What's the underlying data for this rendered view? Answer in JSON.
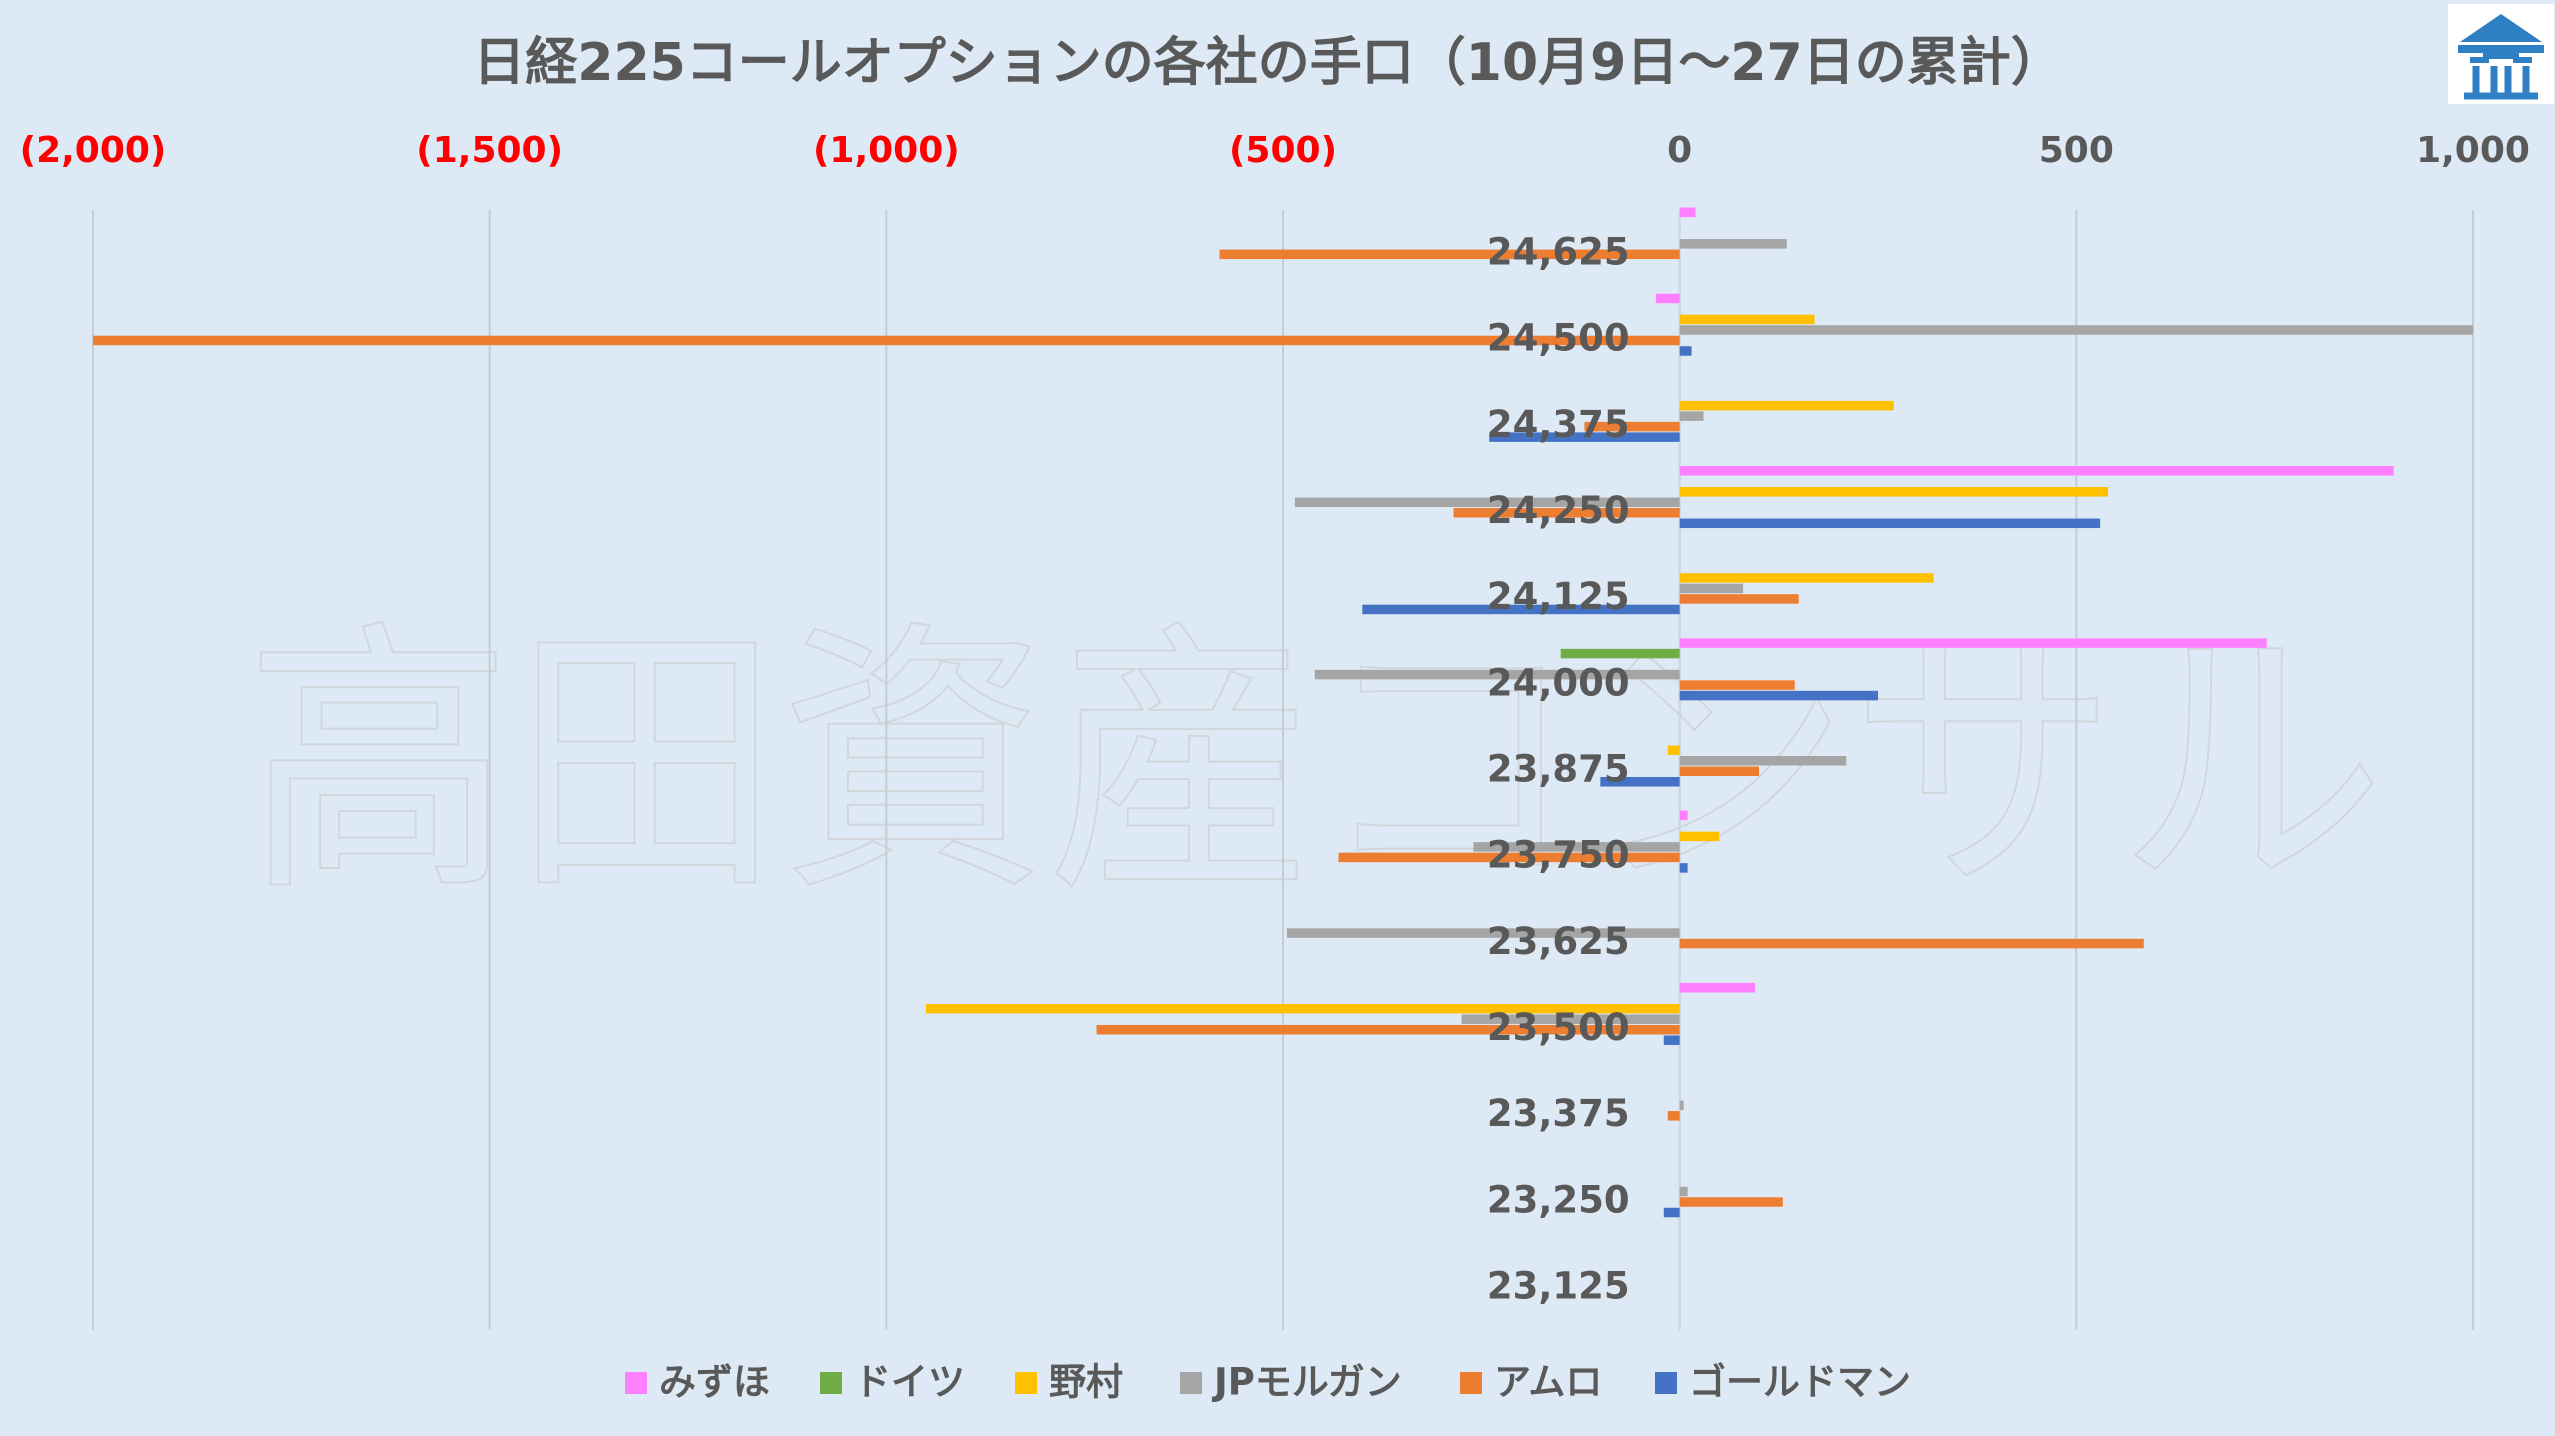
{
  "chart_data": {
    "type": "bar",
    "orientation": "horizontal",
    "title": "日経225コールオプションの各社の手口（10月9日～27日の累計）",
    "xlim": [
      -2000,
      1000
    ],
    "x_ticks": [
      -2000,
      -1500,
      -1000,
      -500,
      0,
      500,
      1000
    ],
    "x_tick_labels": [
      "(2,000)",
      "(1,500)",
      "(1,000)",
      "(500)",
      "0",
      "500",
      "1,000"
    ],
    "x_tick_colors": [
      "#ff0000",
      "#ff0000",
      "#ff0000",
      "#ff0000",
      "#595959",
      "#595959",
      "#595959"
    ],
    "x_axis_position": "top",
    "grid": "vertical",
    "legend_position": "bottom",
    "categories": [
      "24,625",
      "24,500",
      "24,375",
      "24,250",
      "24,125",
      "24,000",
      "23,875",
      "23,750",
      "23,625",
      "23,500",
      "23,375",
      "23,250",
      "23,125"
    ],
    "series": [
      {
        "name": "みずほ",
        "color": "#ff80ff",
        "values": [
          20,
          -30,
          0,
          900,
          0,
          740,
          0,
          10,
          0,
          95,
          0,
          0,
          0
        ]
      },
      {
        "name": "ドイツ",
        "color": "#70ad47",
        "values": [
          0,
          0,
          0,
          0,
          0,
          -150,
          0,
          0,
          0,
          0,
          0,
          0,
          0
        ]
      },
      {
        "name": "野村",
        "color": "#ffc000",
        "values": [
          0,
          170,
          270,
          540,
          320,
          0,
          -15,
          50,
          0,
          -950,
          0,
          0,
          0
        ]
      },
      {
        "name": "JPモルガン",
        "color": "#a5a5a5",
        "values": [
          135,
          1000,
          30,
          -485,
          80,
          -460,
          210,
          -260,
          -495,
          -275,
          5,
          10,
          0
        ]
      },
      {
        "name": "アムロ",
        "color": "#ed7d31",
        "values": [
          -580,
          -2000,
          -120,
          -285,
          150,
          145,
          100,
          -430,
          585,
          -735,
          -15,
          130,
          0
        ]
      },
      {
        "name": "ゴールドマン",
        "color": "#4472c4",
        "values": [
          0,
          15,
          -240,
          530,
          -400,
          250,
          -100,
          10,
          0,
          -20,
          0,
          -20,
          0
        ]
      }
    ]
  },
  "watermark_text": "高田資産コンサル",
  "logo_icon": "building-logo-icon"
}
